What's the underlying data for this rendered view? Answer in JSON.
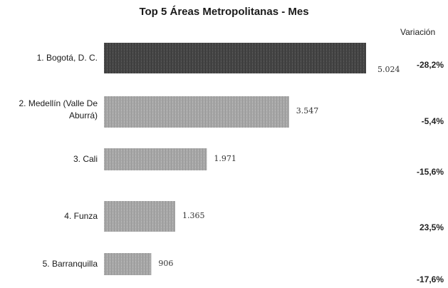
{
  "chart_data": {
    "type": "bar",
    "orientation": "horizontal",
    "title": "Top 5 Áreas Metropolitanas - Mes",
    "categories": [
      "1. Bogotá, D. C.",
      "2. Medellín (Valle De Aburrá)",
      "3. Cali",
      "4. Funza",
      "5. Barranquilla"
    ],
    "values": [
      5024,
      3547,
      1971,
      1365,
      906
    ],
    "value_labels": [
      "5.024",
      "3.547",
      "1.971",
      "1.365",
      "906"
    ],
    "variation_header": "Variación",
    "variations": [
      "-28,2%",
      "-5,4%",
      "-15,6%",
      "23,5%",
      "-17,6%"
    ],
    "colors": {
      "first_bar": "#4a4a4a",
      "other_bars": "#a6a6a6"
    },
    "xlim": [
      0,
      5024
    ],
    "grid": false,
    "legend": "none"
  }
}
